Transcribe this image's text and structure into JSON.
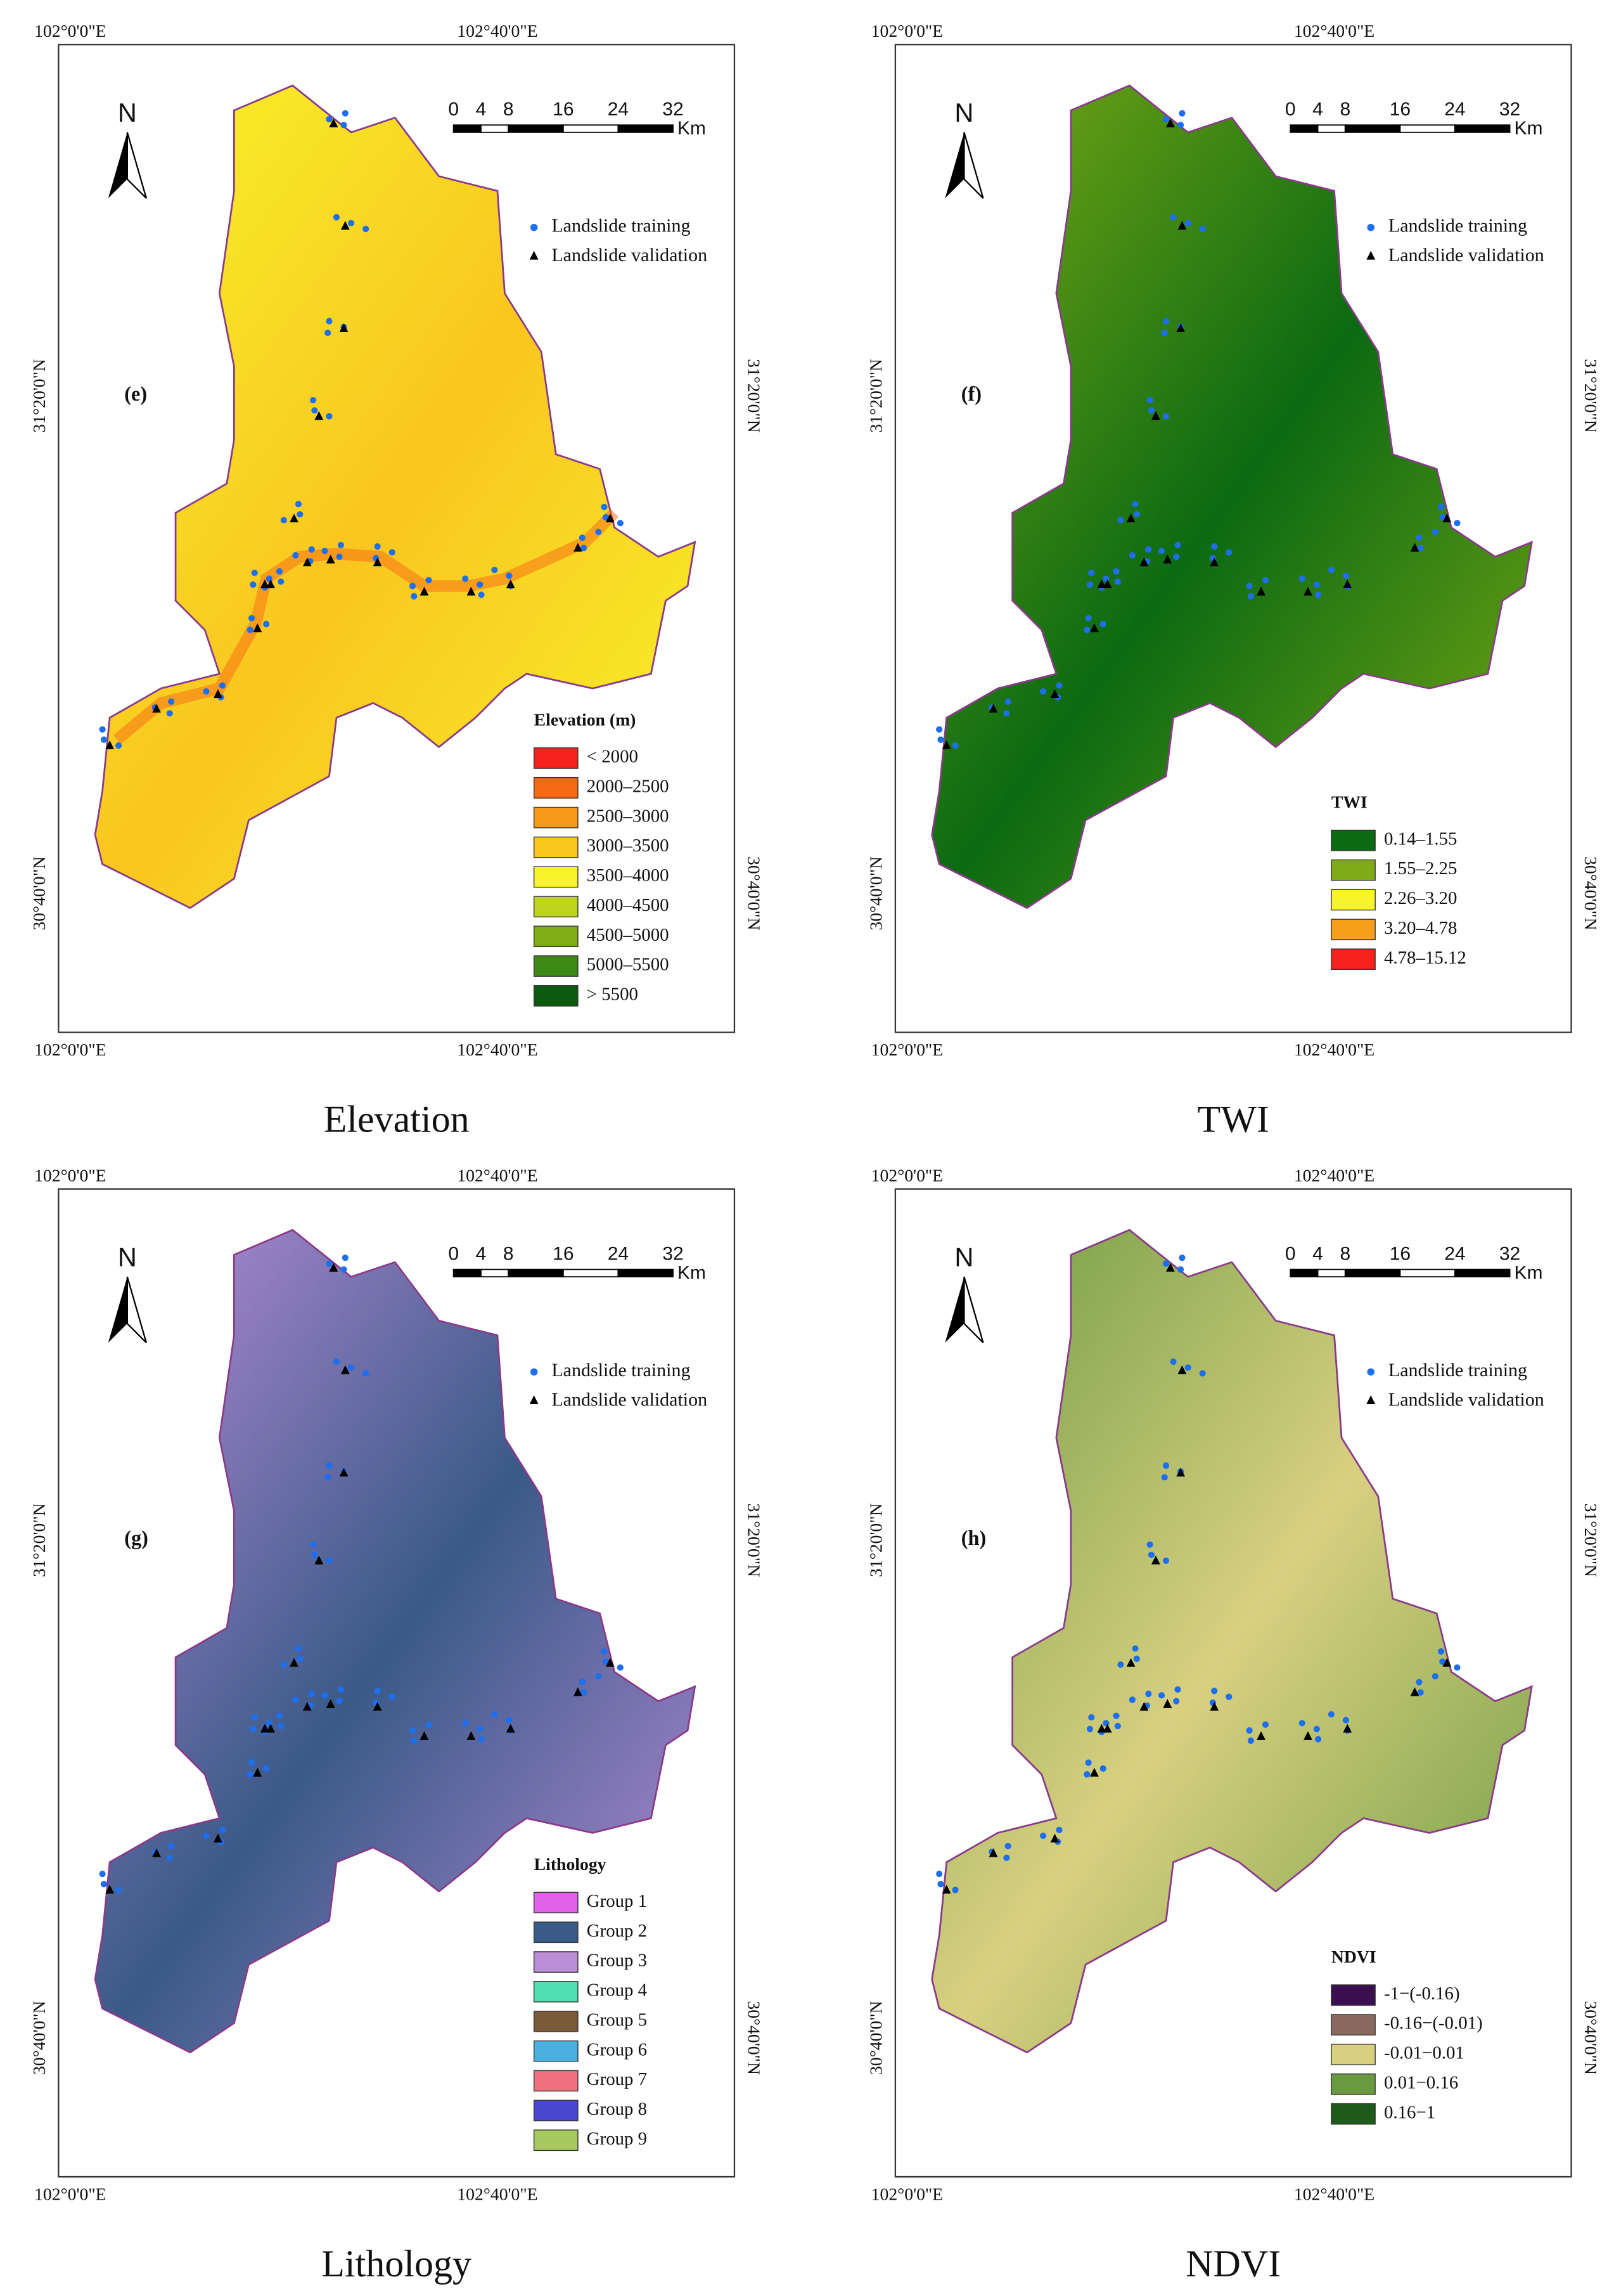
{
  "panels": [
    {
      "label": "(e)",
      "caption": "Elevation",
      "top_lon": [
        "102°0'0\"E",
        "102°40'0\"E"
      ],
      "bottom_lon": [
        "102°0'0\"E",
        "102°40'0\"E"
      ],
      "left_lat": [
        "31°20'0\"N",
        "30°40'0\"N"
      ],
      "right_lat": [
        "31°20'0\"N",
        "30°40'0\"N"
      ],
      "north": "N",
      "scale_ticks": [
        0,
        4,
        8,
        16,
        24,
        32
      ],
      "scale_unit": "Km",
      "point_legend": [
        "Landslide training",
        "Landslide validation"
      ],
      "legend": {
        "title": "Elevation (m)",
        "items": [
          {
            "label": "< 2000",
            "color": "#f5231c"
          },
          {
            "label": "2000–2500",
            "color": "#f76a14"
          },
          {
            "label": "2500–3000",
            "color": "#f79a1a"
          },
          {
            "label": "3000–3500",
            "color": "#f9c620"
          },
          {
            "label": "3500–4000",
            "color": "#f7f52a"
          },
          {
            "label": "4000–4500",
            "color": "#bfd41e"
          },
          {
            "label": "4500–5000",
            "color": "#80ac14"
          },
          {
            "label": "5000–5500",
            "color": "#3f8a16"
          },
          {
            "label": "> 5500",
            "color": "#0b5a10"
          }
        ]
      }
    },
    {
      "label": "(f)",
      "caption": "TWI",
      "top_lon": [
        "102°0'0\"E",
        "102°40'0\"E"
      ],
      "bottom_lon": [
        "102°0'0\"E",
        "102°40'0\"E"
      ],
      "left_lat": [
        "31°20'0\"N",
        "30°40'0\"N"
      ],
      "right_lat": [
        "31°20'0\"N",
        "30°40'0\"N"
      ],
      "north": "N",
      "scale_ticks": [
        0,
        4,
        8,
        16,
        24,
        32
      ],
      "scale_unit": "Km",
      "point_legend": [
        "Landslide training",
        "Landslide validation"
      ],
      "legend": {
        "title": "TWI",
        "items": [
          {
            "label": "0.14–1.55",
            "color": "#0b6a12"
          },
          {
            "label": "1.55–2.25",
            "color": "#7eab16"
          },
          {
            "label": "2.26–3.20",
            "color": "#f7f52a"
          },
          {
            "label": "3.20–4.78",
            "color": "#f7a01a"
          },
          {
            "label": "4.78–15.12",
            "color": "#f5231c"
          }
        ]
      }
    },
    {
      "label": "(g)",
      "caption": "Lithology",
      "top_lon": [
        "102°0'0\"E",
        "102°40'0\"E"
      ],
      "bottom_lon": [
        "102°0'0\"E",
        "102°40'0\"E"
      ],
      "left_lat": [
        "31°20'0\"N",
        "30°40'0\"N"
      ],
      "right_lat": [
        "31°20'0\"N",
        "30°40'0\"N"
      ],
      "north": "N",
      "scale_ticks": [
        0,
        4,
        8,
        16,
        24,
        32
      ],
      "scale_unit": "Km",
      "point_legend": [
        "Landslide training",
        "Landslide validation"
      ],
      "legend": {
        "title": "Lithology",
        "items": [
          {
            "label": "Group 1",
            "color": "#e060e8"
          },
          {
            "label": "Group 2",
            "color": "#3a5a88"
          },
          {
            "label": "Group 3",
            "color": "#bb8ed8"
          },
          {
            "label": "Group 4",
            "color": "#4ee0b0"
          },
          {
            "label": "Group 5",
            "color": "#7a5a38"
          },
          {
            "label": "Group 6",
            "color": "#4aaee0"
          },
          {
            "label": "Group 7",
            "color": "#f07080"
          },
          {
            "label": "Group 8",
            "color": "#4a48d0"
          },
          {
            "label": "Group 9",
            "color": "#a8c860"
          }
        ]
      }
    },
    {
      "label": "(h)",
      "caption": "NDVI",
      "top_lon": [
        "102°0'0\"E",
        "102°40'0\"E"
      ],
      "bottom_lon": [
        "102°0'0\"E",
        "102°40'0\"E"
      ],
      "left_lat": [
        "31°20'0\"N",
        "30°40'0\"N"
      ],
      "right_lat": [
        "31°20'0\"N",
        "30°40'0\"N"
      ],
      "north": "N",
      "scale_ticks": [
        0,
        4,
        8,
        16,
        24,
        32
      ],
      "scale_unit": "Km",
      "point_legend": [
        "Landslide training",
        "Landslide validation"
      ],
      "legend": {
        "title": "NDVI",
        "items": [
          {
            "label": "-1−(-0.16)",
            "color": "#3a1050"
          },
          {
            "label": "-0.16−(-0.01)",
            "color": "#8a6a60"
          },
          {
            "label": "-0.01−0.01",
            "color": "#d8d080"
          },
          {
            "label": "0.01−0.16",
            "color": "#6a9a40"
          },
          {
            "label": "0.16−1",
            "color": "#1e5a1a"
          }
        ]
      }
    }
  ]
}
